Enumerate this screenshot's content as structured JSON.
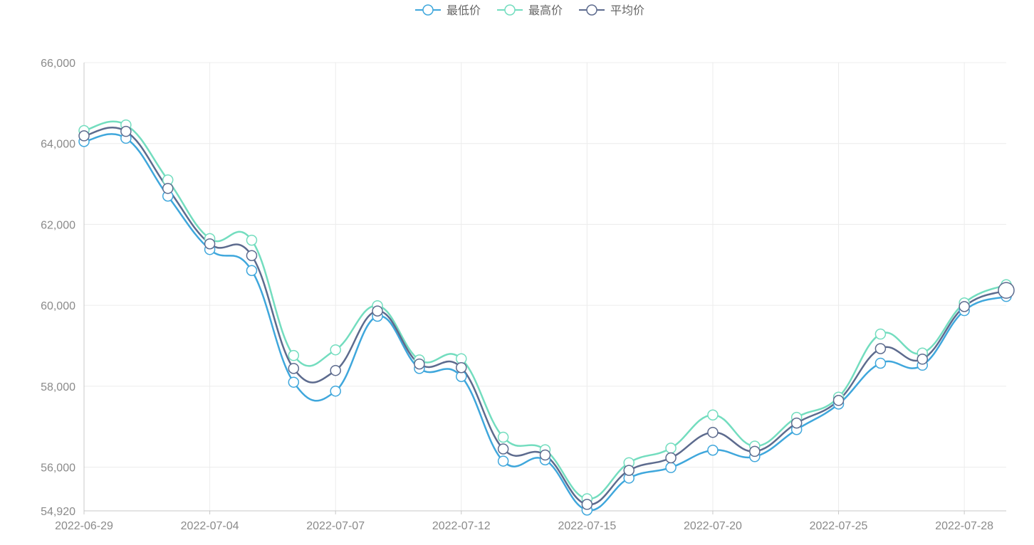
{
  "chart_data": {
    "type": "line",
    "smooth": true,
    "legend": {
      "position": "top-center",
      "items": [
        "最低价",
        "最高价",
        "平均价"
      ]
    },
    "grid": true,
    "ylim": [
      54920,
      66000
    ],
    "y_ticks": [
      54920,
      56000,
      58000,
      60000,
      62000,
      64000,
      66000
    ],
    "y_tick_labels": [
      "54,920",
      "56,000",
      "58,000",
      "60,000",
      "62,000",
      "64,000",
      "66,000"
    ],
    "x_tick_labels": [
      "2022-06-29",
      "2022-07-04",
      "2022-07-07",
      "2022-07-12",
      "2022-07-15",
      "2022-07-20",
      "2022-07-25",
      "2022-07-28"
    ],
    "x_tick_indices": [
      0,
      3,
      6,
      9,
      12,
      15,
      18,
      21
    ],
    "x": [
      "2022-06-29",
      "2022-06-30",
      "2022-07-01",
      "2022-07-04",
      "2022-07-05",
      "2022-07-06",
      "2022-07-07",
      "2022-07-08",
      "2022-07-11",
      "2022-07-12",
      "2022-07-13",
      "2022-07-14",
      "2022-07-15",
      "2022-07-18",
      "2022-07-19",
      "2022-07-20",
      "2022-07-21",
      "2022-07-22",
      "2022-07-25",
      "2022-07-26",
      "2022-07-27",
      "2022-07-28",
      "2022-07-29"
    ],
    "series": [
      {
        "name": "最低价",
        "color": "#3fa7dc",
        "values": [
          64050,
          64130,
          62700,
          61380,
          60860,
          58100,
          57880,
          59730,
          58440,
          58240,
          56150,
          56180,
          54940,
          55730,
          55990,
          56420,
          56260,
          56930,
          57560,
          58570,
          58520,
          59870,
          60220
        ]
      },
      {
        "name": "最高价",
        "color": "#73ddbf",
        "values": [
          64320,
          64460,
          63100,
          61650,
          61610,
          58760,
          58900,
          59990,
          58650,
          58680,
          56740,
          56430,
          55220,
          56110,
          56470,
          57290,
          56520,
          57230,
          57730,
          59290,
          58820,
          60060,
          60510
        ]
      },
      {
        "name": "平均价",
        "color": "#5d6b8e",
        "values": [
          64190,
          64300,
          62890,
          61520,
          61230,
          58440,
          58390,
          59860,
          58550,
          58460,
          56450,
          56300,
          55080,
          55920,
          56230,
          56860,
          56390,
          57090,
          57650,
          58930,
          58670,
          59970,
          60370
        ]
      }
    ]
  }
}
